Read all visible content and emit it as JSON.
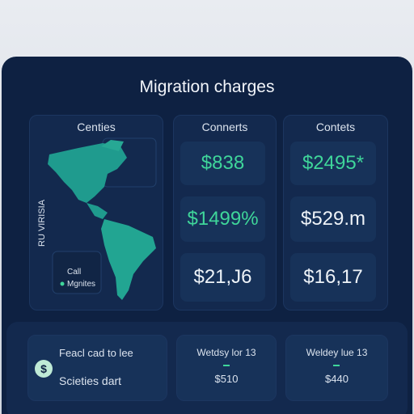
{
  "header": {
    "title": "Migration charges"
  },
  "columns": [
    {
      "heading": "Centies",
      "side_label": "RU VIRISIA",
      "legend": [
        "Call",
        "Mgnites"
      ]
    },
    {
      "heading": "Connerts",
      "cells": [
        "$838",
        "$1499%",
        "$21,J6"
      ]
    },
    {
      "heading": "Contets",
      "cells": [
        "$2495*",
        "$529.m",
        "$16,17"
      ]
    }
  ],
  "footer": {
    "cards": [
      {
        "title": "Feacl cad to lee",
        "text": "Scieties dart"
      },
      {
        "title": "Wetdsy lor 13",
        "value": "$510"
      },
      {
        "title": "Weldey lue 13",
        "value": "$440"
      }
    ]
  }
}
